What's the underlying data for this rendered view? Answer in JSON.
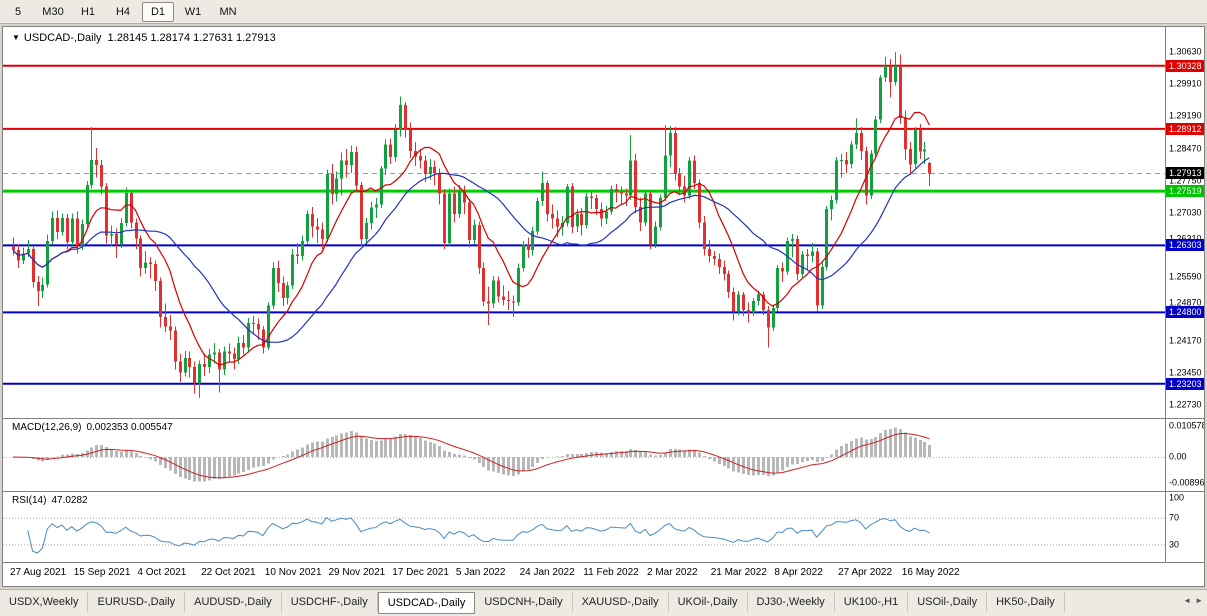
{
  "toolbar": {
    "buttons": [
      {
        "label": "5",
        "active": false
      },
      {
        "label": "M30",
        "active": false
      },
      {
        "label": "H1",
        "active": false
      },
      {
        "label": "H4",
        "active": false
      },
      {
        "label": "D1",
        "active": true
      },
      {
        "label": "W1",
        "active": false
      },
      {
        "label": "MN",
        "active": false
      }
    ]
  },
  "icons": {
    "chart_menu_arrow": "▼",
    "tab_scroll_left": "◄",
    "tab_scroll_right": "►"
  },
  "chart": {
    "title_symbol": "USDCAD-,Daily",
    "title_ohlc": "1.28145 1.28174 1.27631 1.27913"
  },
  "current_price": 1.27913,
  "hlines": [
    {
      "price": 1.30328,
      "color": "#e00000",
      "width": 2
    },
    {
      "price": 1.28912,
      "color": "#e00000",
      "width": 2
    },
    {
      "price": 1.27519,
      "color": "#00cc00",
      "width": 3
    },
    {
      "price": 1.26303,
      "color": "#0000c8",
      "width": 2
    },
    {
      "price": 1.248,
      "color": "#0000c8",
      "width": 2
    },
    {
      "price": 1.23203,
      "color": "#0000c8",
      "width": 2
    }
  ],
  "price_axis": {
    "ticks": [
      "1.30630",
      "1.29910",
      "1.29190",
      "1.28470",
      "1.27750",
      "1.27030",
      "1.26310",
      "1.25590",
      "1.24870",
      "1.24170",
      "1.23450",
      "1.22730"
    ],
    "badges": [
      {
        "text": "1.30328",
        "price": 1.30328,
        "color": "#e00000"
      },
      {
        "text": "1.28912",
        "price": 1.28912,
        "color": "#e00000"
      },
      {
        "text": "1.27913",
        "price": 1.27913,
        "color": "#000000"
      },
      {
        "text": "1.27519",
        "price": 1.27519,
        "color": "#00c400"
      },
      {
        "text": "1.26303",
        "price": 1.26303,
        "color": "#0000c8"
      },
      {
        "text": "1.24800",
        "price": 1.248,
        "color": "#0000c8"
      },
      {
        "text": "1.23203",
        "price": 1.23203,
        "color": "#0000c8"
      }
    ]
  },
  "indicators": {
    "macd": {
      "label": "MACD(12,26,9)",
      "values": "0.002353 0.005547",
      "fast": 12,
      "slow": 26,
      "signal": 9,
      "axis": [
        "0.010578",
        "0.00",
        "-0.00896"
      ],
      "axis_values": [
        0.010578,
        0,
        -0.00896
      ],
      "histogram_color": "#b8b8b8",
      "signal_color": "#cc2222"
    },
    "rsi": {
      "label": "RSI(14)",
      "value": "47.0282",
      "period": 14,
      "axis": [
        "100",
        "70",
        "30"
      ],
      "axis_values": [
        100,
        70,
        30
      ],
      "levels": [
        70,
        30
      ],
      "color": "#4a8ac4"
    }
  },
  "chart_data": {
    "type": "candlestick",
    "symbol": "USDCAD",
    "timeframe": "Daily",
    "y_range": [
      1.2248,
      1.3115
    ],
    "bull_color": "#12a13e",
    "bear_color": "#e03030",
    "overlays": [
      {
        "name": "ma-fast",
        "type": "sma",
        "period": 10,
        "color": "#d40000"
      },
      {
        "name": "ma-slow",
        "type": "sma",
        "period": 25,
        "color": "#2233bb"
      }
    ],
    "x_labels": [
      {
        "label": "27 Aug 2021",
        "index": 0
      },
      {
        "label": "15 Sep 2021",
        "index": 13
      },
      {
        "label": "4 Oct 2021",
        "index": 26
      },
      {
        "label": "22 Oct 2021",
        "index": 39
      },
      {
        "label": "10 Nov 2021",
        "index": 52
      },
      {
        "label": "29 Nov 2021",
        "index": 65
      },
      {
        "label": "17 Dec 2021",
        "index": 78
      },
      {
        "label": "5 Jan 2022",
        "index": 91
      },
      {
        "label": "24 Jan 2022",
        "index": 104
      },
      {
        "label": "11 Feb 2022",
        "index": 117
      },
      {
        "label": "2 Mar 2022",
        "index": 130
      },
      {
        "label": "21 Mar 2022",
        "index": 143
      },
      {
        "label": "8 Apr 2022",
        "index": 156
      },
      {
        "label": "27 Apr 2022",
        "index": 169
      },
      {
        "label": "16 May 2022",
        "index": 182
      }
    ],
    "ohlc": [
      [
        1.2628,
        1.2648,
        1.2608,
        1.262
      ],
      [
        1.262,
        1.2632,
        1.258,
        1.2596
      ],
      [
        1.2596,
        1.2625,
        1.2588,
        1.2612
      ],
      [
        1.2612,
        1.2642,
        1.2604,
        1.2622
      ],
      [
        1.2622,
        1.263,
        1.2536,
        1.2548
      ],
      [
        1.2548,
        1.2562,
        1.2494,
        1.2528
      ],
      [
        1.2528,
        1.2558,
        1.2512,
        1.2542
      ],
      [
        1.2542,
        1.2655,
        1.2536,
        1.264
      ],
      [
        1.264,
        1.2706,
        1.2632,
        1.2692
      ],
      [
        1.2692,
        1.2708,
        1.2644,
        1.266
      ],
      [
        1.266,
        1.2702,
        1.2652,
        1.2692
      ],
      [
        1.2692,
        1.27,
        1.2622,
        1.2638
      ],
      [
        1.2638,
        1.2702,
        1.263,
        1.269
      ],
      [
        1.269,
        1.2706,
        1.2612,
        1.2628
      ],
      [
        1.2628,
        1.2688,
        1.262,
        1.2678
      ],
      [
        1.2678,
        1.2775,
        1.267,
        1.2765
      ],
      [
        1.2765,
        1.2895,
        1.2758,
        1.2822
      ],
      [
        1.2822,
        1.2848,
        1.2782,
        1.281
      ],
      [
        1.281,
        1.2822,
        1.2744,
        1.2762
      ],
      [
        1.2762,
        1.277,
        1.2634,
        1.2652
      ],
      [
        1.2652,
        1.2675,
        1.2628,
        1.2656
      ],
      [
        1.2656,
        1.2668,
        1.2602,
        1.2632
      ],
      [
        1.2632,
        1.2692,
        1.2624,
        1.268
      ],
      [
        1.268,
        1.276,
        1.2672,
        1.2748
      ],
      [
        1.2748,
        1.2752,
        1.2668,
        1.2682
      ],
      [
        1.2682,
        1.269,
        1.2622,
        1.2646
      ],
      [
        1.2646,
        1.2652,
        1.256,
        1.258
      ],
      [
        1.258,
        1.2618,
        1.2566,
        1.2592
      ],
      [
        1.2592,
        1.2604,
        1.2556,
        1.2588
      ],
      [
        1.2588,
        1.2596,
        1.2528,
        1.255
      ],
      [
        1.255,
        1.2558,
        1.2446,
        1.247
      ],
      [
        1.247,
        1.25,
        1.2436,
        1.2448
      ],
      [
        1.2448,
        1.2474,
        1.2418,
        1.244
      ],
      [
        1.244,
        1.2448,
        1.2352,
        1.237
      ],
      [
        1.237,
        1.2388,
        1.2324,
        1.2345
      ],
      [
        1.2345,
        1.2394,
        1.2336,
        1.2378
      ],
      [
        1.2378,
        1.2392,
        1.2334,
        1.2358
      ],
      [
        1.2358,
        1.237,
        1.2298,
        1.2322
      ],
      [
        1.2322,
        1.2372,
        1.2288,
        1.2365
      ],
      [
        1.2365,
        1.2388,
        1.2338,
        1.2358
      ],
      [
        1.2358,
        1.2398,
        1.2344,
        1.2386
      ],
      [
        1.2386,
        1.2412,
        1.2366,
        1.239
      ],
      [
        1.239,
        1.2398,
        1.2301,
        1.2352
      ],
      [
        1.2352,
        1.2404,
        1.234,
        1.2392
      ],
      [
        1.2392,
        1.241,
        1.2368,
        1.2388
      ],
      [
        1.2388,
        1.2402,
        1.2352,
        1.2376
      ],
      [
        1.2376,
        1.2426,
        1.2364,
        1.2412
      ],
      [
        1.2412,
        1.243,
        1.2386,
        1.2402
      ],
      [
        1.2402,
        1.2468,
        1.2394,
        1.2456
      ],
      [
        1.2456,
        1.2472,
        1.2432,
        1.2454
      ],
      [
        1.2454,
        1.2466,
        1.2418,
        1.2442
      ],
      [
        1.2442,
        1.245,
        1.2388,
        1.2402
      ],
      [
        1.2402,
        1.2502,
        1.2396,
        1.2496
      ],
      [
        1.2496,
        1.2592,
        1.2488,
        1.258
      ],
      [
        1.258,
        1.2596,
        1.2526,
        1.2546
      ],
      [
        1.2546,
        1.256,
        1.2494,
        1.2512
      ],
      [
        1.2512,
        1.2548,
        1.2498,
        1.254
      ],
      [
        1.254,
        1.2622,
        1.2532,
        1.261
      ],
      [
        1.261,
        1.2636,
        1.2588,
        1.2606
      ],
      [
        1.2606,
        1.2652,
        1.2596,
        1.264
      ],
      [
        1.264,
        1.2708,
        1.2632,
        1.27
      ],
      [
        1.27,
        1.2716,
        1.2648,
        1.2672
      ],
      [
        1.2672,
        1.2692,
        1.2636,
        1.2666
      ],
      [
        1.2666,
        1.2682,
        1.2622,
        1.2645
      ],
      [
        1.2645,
        1.28,
        1.2638,
        1.279
      ],
      [
        1.279,
        1.2812,
        1.2722,
        1.2745
      ],
      [
        1.2745,
        1.2796,
        1.2728,
        1.278
      ],
      [
        1.278,
        1.2838,
        1.2742,
        1.282
      ],
      [
        1.282,
        1.2846,
        1.2782,
        1.281
      ],
      [
        1.281,
        1.2854,
        1.2792,
        1.284
      ],
      [
        1.284,
        1.2852,
        1.2752,
        1.2765
      ],
      [
        1.2765,
        1.2772,
        1.2628,
        1.2645
      ],
      [
        1.2645,
        1.2692,
        1.2632,
        1.268
      ],
      [
        1.268,
        1.2728,
        1.2666,
        1.2715
      ],
      [
        1.2715,
        1.2736,
        1.2692,
        1.2722
      ],
      [
        1.2722,
        1.2808,
        1.2714,
        1.2802
      ],
      [
        1.2802,
        1.2868,
        1.2788,
        1.2856
      ],
      [
        1.2856,
        1.287,
        1.2812,
        1.2828
      ],
      [
        1.2828,
        1.2902,
        1.2818,
        1.289
      ],
      [
        1.289,
        1.2964,
        1.2874,
        1.2945
      ],
      [
        1.2945,
        1.2952,
        1.2872,
        1.289
      ],
      [
        1.289,
        1.2906,
        1.2826,
        1.2842
      ],
      [
        1.2842,
        1.2862,
        1.2808,
        1.283
      ],
      [
        1.283,
        1.2846,
        1.2802,
        1.282
      ],
      [
        1.282,
        1.2832,
        1.2772,
        1.279
      ],
      [
        1.279,
        1.2824,
        1.2778,
        1.2806
      ],
      [
        1.2806,
        1.282,
        1.2766,
        1.2792
      ],
      [
        1.2792,
        1.2802,
        1.2722,
        1.2746
      ],
      [
        1.2746,
        1.2756,
        1.2622,
        1.2636
      ],
      [
        1.2636,
        1.2758,
        1.2628,
        1.2746
      ],
      [
        1.2746,
        1.2762,
        1.2682,
        1.27
      ],
      [
        1.27,
        1.2766,
        1.2692,
        1.2752
      ],
      [
        1.2752,
        1.2764,
        1.27,
        1.2726
      ],
      [
        1.2726,
        1.2734,
        1.2626,
        1.2642
      ],
      [
        1.2642,
        1.2688,
        1.2632,
        1.2676
      ],
      [
        1.2676,
        1.2684,
        1.2566,
        1.258
      ],
      [
        1.258,
        1.2592,
        1.2494,
        1.2505
      ],
      [
        1.2505,
        1.2538,
        1.2452,
        1.25
      ],
      [
        1.25,
        1.2562,
        1.249,
        1.2552
      ],
      [
        1.2552,
        1.256,
        1.2502,
        1.2516
      ],
      [
        1.2516,
        1.254,
        1.2496,
        1.2508
      ],
      [
        1.2508,
        1.2528,
        1.2486,
        1.2505
      ],
      [
        1.2505,
        1.2518,
        1.247,
        1.2502
      ],
      [
        1.2502,
        1.259,
        1.2494,
        1.258
      ],
      [
        1.258,
        1.264,
        1.2572,
        1.2632
      ],
      [
        1.2632,
        1.2648,
        1.2602,
        1.262
      ],
      [
        1.262,
        1.2672,
        1.2608,
        1.2662
      ],
      [
        1.2662,
        1.2738,
        1.2654,
        1.273
      ],
      [
        1.273,
        1.2796,
        1.2718,
        1.277
      ],
      [
        1.277,
        1.2776,
        1.2684,
        1.27
      ],
      [
        1.27,
        1.2722,
        1.2668,
        1.269
      ],
      [
        1.269,
        1.2708,
        1.2648,
        1.2672
      ],
      [
        1.2672,
        1.2696,
        1.2652,
        1.268
      ],
      [
        1.268,
        1.2768,
        1.2672,
        1.2762
      ],
      [
        1.2762,
        1.277,
        1.2658,
        1.2672
      ],
      [
        1.2672,
        1.2712,
        1.266,
        1.27
      ],
      [
        1.27,
        1.2714,
        1.2652,
        1.2676
      ],
      [
        1.2676,
        1.2748,
        1.2668,
        1.274
      ],
      [
        1.274,
        1.2752,
        1.2712,
        1.2736
      ],
      [
        1.2736,
        1.2744,
        1.2698,
        1.2712
      ],
      [
        1.2712,
        1.2726,
        1.2672,
        1.269
      ],
      [
        1.269,
        1.2718,
        1.2678,
        1.2706
      ],
      [
        1.2706,
        1.2764,
        1.2698,
        1.2756
      ],
      [
        1.2756,
        1.2768,
        1.2726,
        1.275
      ],
      [
        1.275,
        1.2762,
        1.2722,
        1.2746
      ],
      [
        1.2746,
        1.2758,
        1.2718,
        1.2742
      ],
      [
        1.2742,
        1.2877,
        1.2732,
        1.282
      ],
      [
        1.282,
        1.2836,
        1.2702,
        1.2716
      ],
      [
        1.2716,
        1.2738,
        1.2662,
        1.2682
      ],
      [
        1.2682,
        1.2754,
        1.2674,
        1.2746
      ],
      [
        1.2746,
        1.2752,
        1.2622,
        1.2632
      ],
      [
        1.2632,
        1.2684,
        1.2624,
        1.2672
      ],
      [
        1.2672,
        1.2744,
        1.2664,
        1.2736
      ],
      [
        1.2736,
        1.29,
        1.2728,
        1.2832
      ],
      [
        1.2832,
        1.2898,
        1.2806,
        1.2882
      ],
      [
        1.2882,
        1.2896,
        1.2776,
        1.279
      ],
      [
        1.279,
        1.2804,
        1.2746,
        1.2762
      ],
      [
        1.2762,
        1.2786,
        1.2726,
        1.2742
      ],
      [
        1.2742,
        1.2828,
        1.2734,
        1.282
      ],
      [
        1.282,
        1.2832,
        1.2756,
        1.277
      ],
      [
        1.277,
        1.2778,
        1.2668,
        1.2682
      ],
      [
        1.2682,
        1.2696,
        1.2608,
        1.2622
      ],
      [
        1.2622,
        1.2642,
        1.2592,
        1.2606
      ],
      [
        1.2606,
        1.2618,
        1.2586,
        1.26
      ],
      [
        1.26,
        1.2612,
        1.2566,
        1.2582
      ],
      [
        1.2582,
        1.2596,
        1.2552,
        1.2566
      ],
      [
        1.2566,
        1.2574,
        1.2512,
        1.2526
      ],
      [
        1.2526,
        1.2536,
        1.2462,
        1.2482
      ],
      [
        1.2482,
        1.2528,
        1.2474,
        1.252
      ],
      [
        1.252,
        1.2526,
        1.2472,
        1.2486
      ],
      [
        1.2486,
        1.2502,
        1.2458,
        1.248
      ],
      [
        1.248,
        1.2512,
        1.2472,
        1.2506
      ],
      [
        1.2506,
        1.2528,
        1.2496,
        1.252
      ],
      [
        1.252,
        1.2526,
        1.2474,
        1.2486
      ],
      [
        1.2486,
        1.2494,
        1.2402,
        1.2446
      ],
      [
        1.2446,
        1.2498,
        1.2438,
        1.249
      ],
      [
        1.249,
        1.2586,
        1.2482,
        1.258
      ],
      [
        1.258,
        1.2592,
        1.2548,
        1.2572
      ],
      [
        1.2572,
        1.2648,
        1.2564,
        1.264
      ],
      [
        1.264,
        1.2656,
        1.2604,
        1.2645
      ],
      [
        1.2645,
        1.2652,
        1.2552,
        1.2566
      ],
      [
        1.2566,
        1.2618,
        1.2558,
        1.261
      ],
      [
        1.261,
        1.2622,
        1.2574,
        1.2606
      ],
      [
        1.2606,
        1.2636,
        1.2592,
        1.2616
      ],
      [
        1.2616,
        1.2624,
        1.2482,
        1.2496
      ],
      [
        1.2496,
        1.2592,
        1.2488,
        1.2582
      ],
      [
        1.2582,
        1.2718,
        1.2574,
        1.2712
      ],
      [
        1.2712,
        1.2742,
        1.2686,
        1.2732
      ],
      [
        1.2732,
        1.2828,
        1.2724,
        1.282
      ],
      [
        1.282,
        1.2836,
        1.2782,
        1.2822
      ],
      [
        1.2822,
        1.284,
        1.2792,
        1.2812
      ],
      [
        1.2812,
        1.2864,
        1.2802,
        1.2856
      ],
      [
        1.2856,
        1.2915,
        1.2846,
        1.2882
      ],
      [
        1.2882,
        1.2896,
        1.2822,
        1.2842
      ],
      [
        1.2842,
        1.2852,
        1.2722,
        1.2742
      ],
      [
        1.2742,
        1.2844,
        1.2734,
        1.2836
      ],
      [
        1.2836,
        1.292,
        1.2828,
        1.2912
      ],
      [
        1.2912,
        1.3012,
        1.2904,
        1.3006
      ],
      [
        1.3006,
        1.3052,
        1.2996,
        1.3032
      ],
      [
        1.3032,
        1.3048,
        1.2962,
        1.2996
      ],
      [
        1.2996,
        1.3063,
        1.2988,
        1.3032
      ],
      [
        1.3032,
        1.3058,
        1.2902,
        1.2916
      ],
      [
        1.2916,
        1.2932,
        1.2822,
        1.2846
      ],
      [
        1.2846,
        1.2862,
        1.2788,
        1.2812
      ],
      [
        1.2812,
        1.2896,
        1.2804,
        1.289
      ],
      [
        1.289,
        1.2902,
        1.2824,
        1.284
      ],
      [
        1.284,
        1.2862,
        1.2812,
        1.2845
      ],
      [
        1.28145,
        1.28174,
        1.27631,
        1.27913
      ]
    ]
  },
  "tabs": {
    "active_index": 4,
    "items": [
      {
        "label": "USDX,Weekly"
      },
      {
        "label": "EURUSD-,Daily"
      },
      {
        "label": "AUDUSD-,Daily"
      },
      {
        "label": "USDCHF-,Daily"
      },
      {
        "label": "USDCAD-,Daily"
      },
      {
        "label": "USDCNH-,Daily"
      },
      {
        "label": "XAUUSD-,Daily"
      },
      {
        "label": "UKOil-,Daily"
      },
      {
        "label": "DJ30-,Weekly"
      },
      {
        "label": "UK100-,H1"
      },
      {
        "label": "USOil-,Daily"
      },
      {
        "label": "HK50-,Daily"
      }
    ]
  }
}
